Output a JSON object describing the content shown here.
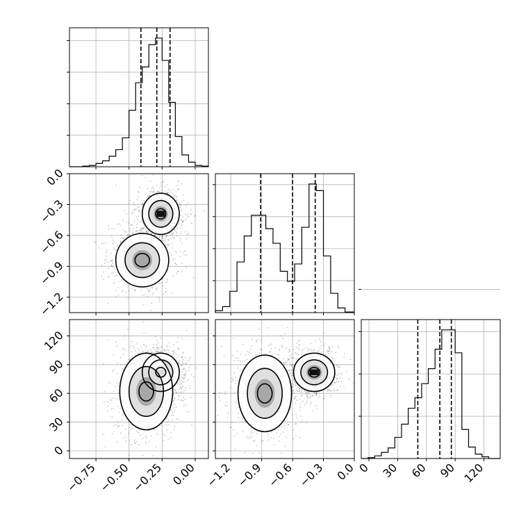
{
  "chart_data": {
    "type": "corner",
    "title": "",
    "grid": true,
    "parameters": [
      {
        "id": "p1",
        "range": [
          -0.95,
          0.1
        ],
        "ticks": [
          -0.75,
          -0.5,
          -0.25,
          0.0
        ],
        "tick_labels": [
          "−0.75",
          "−0.50",
          "−0.25",
          "0.00"
        ],
        "quantiles": [
          -0.41,
          -0.29,
          -0.19
        ],
        "histogram": {
          "bin_edges": [
            -0.95,
            -0.9,
            -0.85,
            -0.8,
            -0.75,
            -0.7,
            -0.65,
            -0.6,
            -0.55,
            -0.5,
            -0.45,
            -0.4,
            -0.35,
            -0.3,
            -0.25,
            -0.2,
            -0.15,
            -0.1,
            -0.05,
            0.0,
            0.05,
            0.1
          ],
          "counts": [
            0,
            0,
            1,
            2,
            5,
            9,
            16,
            26,
            44,
            86,
            128,
            152,
            186,
            196,
            162,
            98,
            46,
            18,
            7,
            2,
            1
          ]
        }
      },
      {
        "id": "p2",
        "range": [
          -1.35,
          0.0
        ],
        "ticks": [
          -1.2,
          -0.9,
          -0.6,
          -0.3,
          0.0
        ],
        "tick_labels": [
          "−1.2",
          "−0.9",
          "−0.6",
          "−0.3",
          "0.0"
        ],
        "quantiles": [
          -0.91,
          -0.6,
          -0.38
        ],
        "histogram": {
          "bin_edges": [
            -1.35,
            -1.28,
            -1.21,
            -1.14,
            -1.07,
            -1.0,
            -0.93,
            -0.86,
            -0.79,
            -0.72,
            -0.65,
            -0.58,
            -0.51,
            -0.44,
            -0.37,
            -0.3,
            -0.23,
            -0.16,
            -0.09,
            0.0
          ],
          "counts": [
            3,
            9,
            32,
            76,
            115,
            146,
            146,
            126,
            104,
            62,
            47,
            73,
            128,
            193,
            183,
            85,
            29,
            7,
            1
          ]
        }
      },
      {
        "id": "p3",
        "range": [
          -8,
          137
        ],
        "ticks": [
          0,
          30,
          60,
          90,
          120
        ],
        "tick_labels": [
          "0",
          "30",
          "60",
          "90",
          "120"
        ],
        "quantiles": [
          51,
          74,
          86
        ],
        "histogram": {
          "bin_edges": [
            -8,
            -1,
            6,
            13,
            20,
            27,
            34,
            41,
            48,
            55,
            62,
            69,
            76,
            83,
            90,
            97,
            104,
            111,
            118,
            125,
            137
          ],
          "counts": [
            0,
            1,
            3,
            7,
            12,
            24,
            39,
            57,
            69,
            85,
            102,
            124,
            146,
            146,
            120,
            33,
            13,
            5,
            2,
            0
          ]
        }
      }
    ],
    "joint_panels": [
      {
        "x": "p1",
        "y": "p2",
        "modes": [
          {
            "cx": -0.26,
            "cy": -0.39,
            "sx": 0.07,
            "sy": 0.1,
            "weight": 0.55
          },
          {
            "cx": -0.4,
            "cy": -0.84,
            "sx": 0.1,
            "sy": 0.13,
            "weight": 0.45
          }
        ]
      },
      {
        "x": "p1",
        "y": "p3",
        "modes": [
          {
            "cx": -0.26,
            "cy": 82,
            "sx": 0.07,
            "sy": 10,
            "weight": 0.55
          },
          {
            "cx": -0.37,
            "cy": 62,
            "sx": 0.1,
            "sy": 20,
            "weight": 0.45
          }
        ]
      },
      {
        "x": "p2",
        "y": "p3",
        "modes": [
          {
            "cx": -0.39,
            "cy": 82,
            "sx": 0.1,
            "sy": 10,
            "weight": 0.55
          },
          {
            "cx": -0.87,
            "cy": 60,
            "sx": 0.13,
            "sy": 20,
            "weight": 0.45
          }
        ]
      }
    ]
  }
}
